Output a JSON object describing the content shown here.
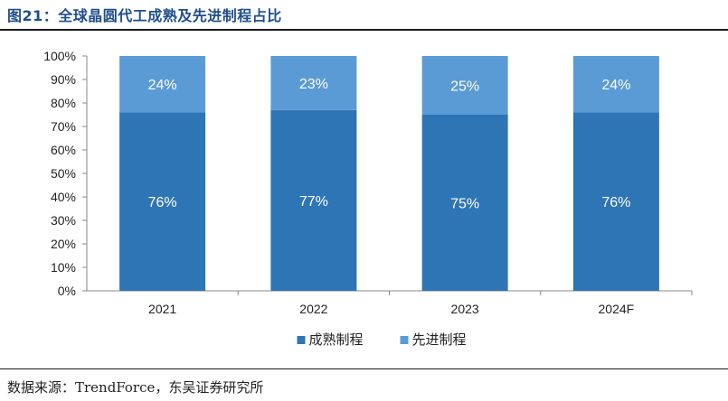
{
  "figure": {
    "title": "图21：全球晶圆代工成熟及先进制程占比",
    "source": "数据来源：TrendForce，东吴证券研究所"
  },
  "colors": {
    "mature": "#2e75b6",
    "advanced": "#5b9bd5",
    "title": "#1f4e8c"
  },
  "chart_data": {
    "type": "bar",
    "stacked": true,
    "categories": [
      "2021",
      "2022",
      "2023",
      "2024F"
    ],
    "series": [
      {
        "name": "成熟制程",
        "values": [
          76,
          77,
          75,
          76
        ],
        "labels": [
          "76%",
          "77%",
          "75%",
          "76%"
        ]
      },
      {
        "name": "先进制程",
        "values": [
          24,
          23,
          25,
          24
        ],
        "labels": [
          "24%",
          "23%",
          "25%",
          "24%"
        ]
      }
    ],
    "ylim": [
      0,
      100
    ],
    "yticks": [
      "0%",
      "10%",
      "20%",
      "30%",
      "40%",
      "50%",
      "60%",
      "70%",
      "80%",
      "90%",
      "100%"
    ],
    "grid": false,
    "legend": "bottom",
    "xlabel": "",
    "ylabel": ""
  }
}
